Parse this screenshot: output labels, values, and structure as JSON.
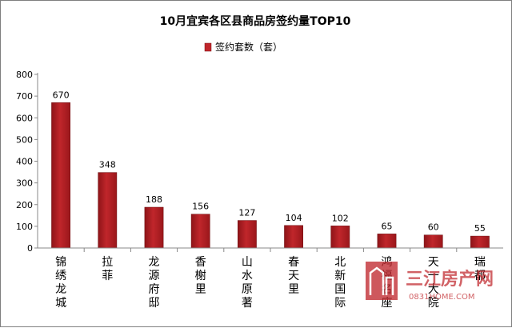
{
  "chart_data": {
    "type": "bar",
    "title": "10月宜宾各区县商品房签约量TOP10",
    "legend": {
      "label": "签约套数（套）",
      "position": "top"
    },
    "categories": [
      "锦绣龙城",
      "拉菲",
      "龙源府邸",
      "香榭里",
      "山水原著",
      "春天里",
      "北新国际",
      "鸿福名座",
      "天一大院",
      "瑞都"
    ],
    "values": [
      670,
      348,
      188,
      156,
      127,
      104,
      102,
      65,
      60,
      55
    ],
    "ylim": [
      0,
      800
    ],
    "yticks": [
      0,
      100,
      200,
      300,
      400,
      500,
      600,
      700,
      800
    ],
    "grid": false,
    "bar_color": "#c0262b",
    "data_labels": true
  },
  "watermark": {
    "text": "三江房产网",
    "url": "0831HOME.COM",
    "color": "#c0262b"
  }
}
